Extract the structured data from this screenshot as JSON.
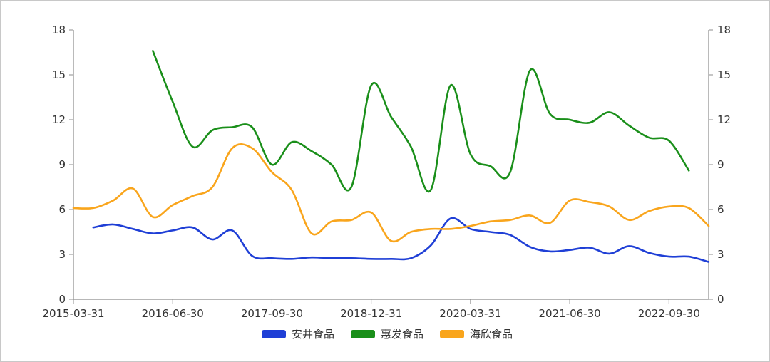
{
  "chart_data": {
    "type": "line",
    "x_tick_labels": [
      "2015-03-31",
      "2016-06-30",
      "2017-09-30",
      "2018-12-31",
      "2020-03-31",
      "2021-06-30",
      "2022-09-30"
    ],
    "y_left": {
      "range": [
        0,
        18
      ],
      "ticks": [
        0,
        3,
        6,
        9,
        12,
        15,
        18
      ]
    },
    "y_right": {
      "range": [
        0,
        18
      ],
      "ticks": [
        0,
        3,
        6,
        9,
        12,
        15,
        18
      ]
    },
    "grid": false,
    "legend_position": "bottom-center",
    "series": [
      {
        "name": "安井食品",
        "color": "#1f3fd6",
        "values": [
          null,
          4.8,
          5.0,
          4.7,
          4.4,
          4.6,
          4.8,
          4.0,
          4.6,
          2.9,
          2.75,
          2.7,
          2.8,
          2.75,
          2.75,
          2.7,
          2.7,
          2.75,
          3.6,
          5.4,
          4.7,
          4.5,
          4.3,
          3.5,
          3.2,
          3.3,
          3.45,
          3.05,
          3.55,
          3.1,
          2.85,
          2.85,
          2.5
        ]
      },
      {
        "name": "惠发食品",
        "color": "#1a8f1a",
        "values": [
          null,
          null,
          null,
          null,
          16.6,
          13.2,
          10.2,
          11.3,
          11.5,
          11.5,
          9.0,
          10.5,
          9.9,
          9.0,
          7.5,
          14.3,
          12.2,
          10.2,
          7.3,
          14.3,
          9.7,
          8.9,
          8.5,
          15.3,
          12.4,
          12.0,
          11.8,
          12.5,
          11.6,
          10.8,
          10.6,
          8.6,
          null
        ]
      },
      {
        "name": "海欣食品",
        "color": "#f9a51c",
        "values": [
          6.1,
          6.1,
          6.6,
          7.4,
          5.5,
          6.3,
          6.9,
          7.5,
          10.1,
          10.1,
          8.5,
          7.3,
          4.4,
          5.2,
          5.3,
          5.8,
          3.9,
          4.5,
          4.7,
          4.7,
          4.9,
          5.2,
          5.3,
          5.6,
          5.1,
          6.6,
          6.5,
          6.2,
          5.3,
          5.9,
          6.2,
          6.1,
          4.9
        ]
      }
    ]
  }
}
